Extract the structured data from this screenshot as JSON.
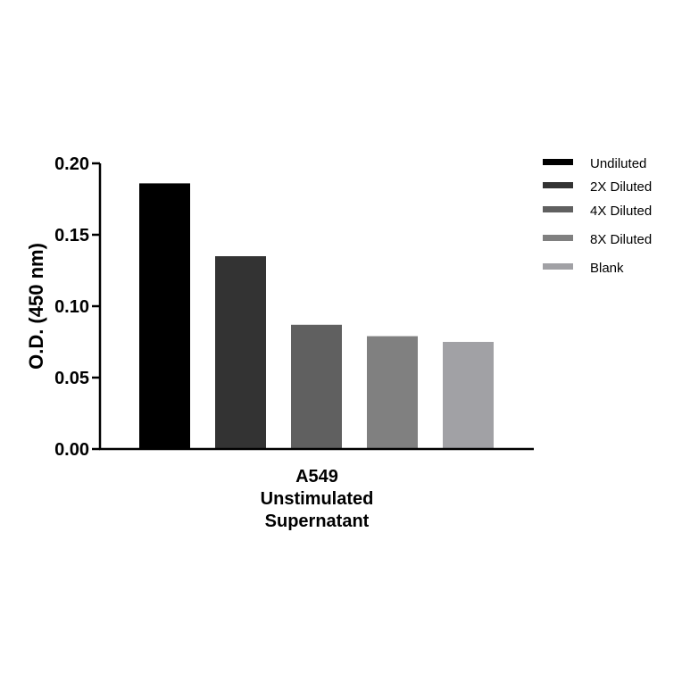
{
  "chart_data": {
    "type": "bar",
    "ylabel": "O.D. (450 nm)",
    "xlabel": "",
    "category_label_lines": [
      "A549",
      "Unstimulated",
      "Supernatant"
    ],
    "ylim": [
      0,
      0.2
    ],
    "yticks": [
      "0.00",
      "0.05",
      "0.10",
      "0.15",
      "0.20"
    ],
    "ytick_values": [
      0,
      0.05,
      0.1,
      0.15,
      0.2
    ],
    "series": [
      {
        "name": "Undiluted",
        "value": 0.186,
        "color": "#000000"
      },
      {
        "name": "2X Diluted",
        "value": 0.135,
        "color": "#333333"
      },
      {
        "name": "4X Diluted",
        "value": 0.087,
        "color": "#606060"
      },
      {
        "name": "8X Diluted",
        "value": 0.079,
        "color": "#808080"
      },
      {
        "name": "Blank",
        "value": 0.075,
        "color": "#a1a1a5"
      }
    ],
    "legend_position": "right",
    "grid": false
  }
}
